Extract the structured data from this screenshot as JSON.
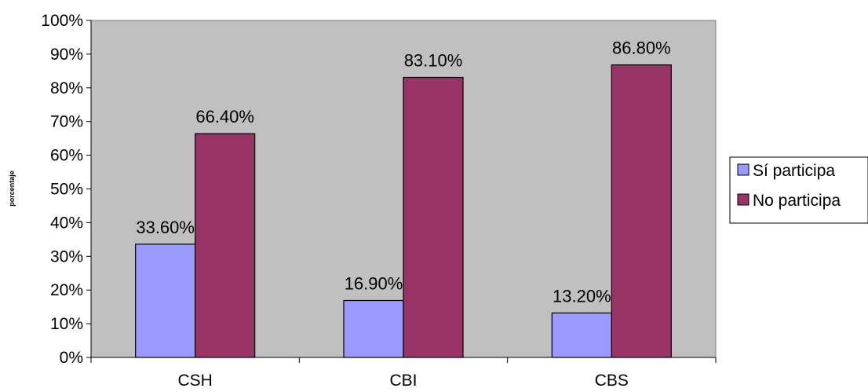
{
  "chart_data": {
    "type": "bar",
    "title": "",
    "xlabel": "",
    "ylabel": "porcentaje",
    "ylim": [
      0,
      100
    ],
    "y_tick_step": 10,
    "y_tick_format": "percent",
    "grid": false,
    "legend_position": "right",
    "categories": [
      "CSH",
      "CBI",
      "CBS"
    ],
    "series": [
      {
        "name": "Sí participa",
        "color": "#9999ff",
        "values": [
          33.6,
          16.9,
          13.2
        ],
        "labels": [
          "33.60%",
          "16.90%",
          "13.20%"
        ]
      },
      {
        "name": "No participa",
        "color": "#993366",
        "values": [
          66.4,
          83.1,
          86.8
        ],
        "labels": [
          "66.40%",
          "83.10%",
          "86.80%"
        ]
      }
    ],
    "plot_background": "#c0c0c0"
  }
}
